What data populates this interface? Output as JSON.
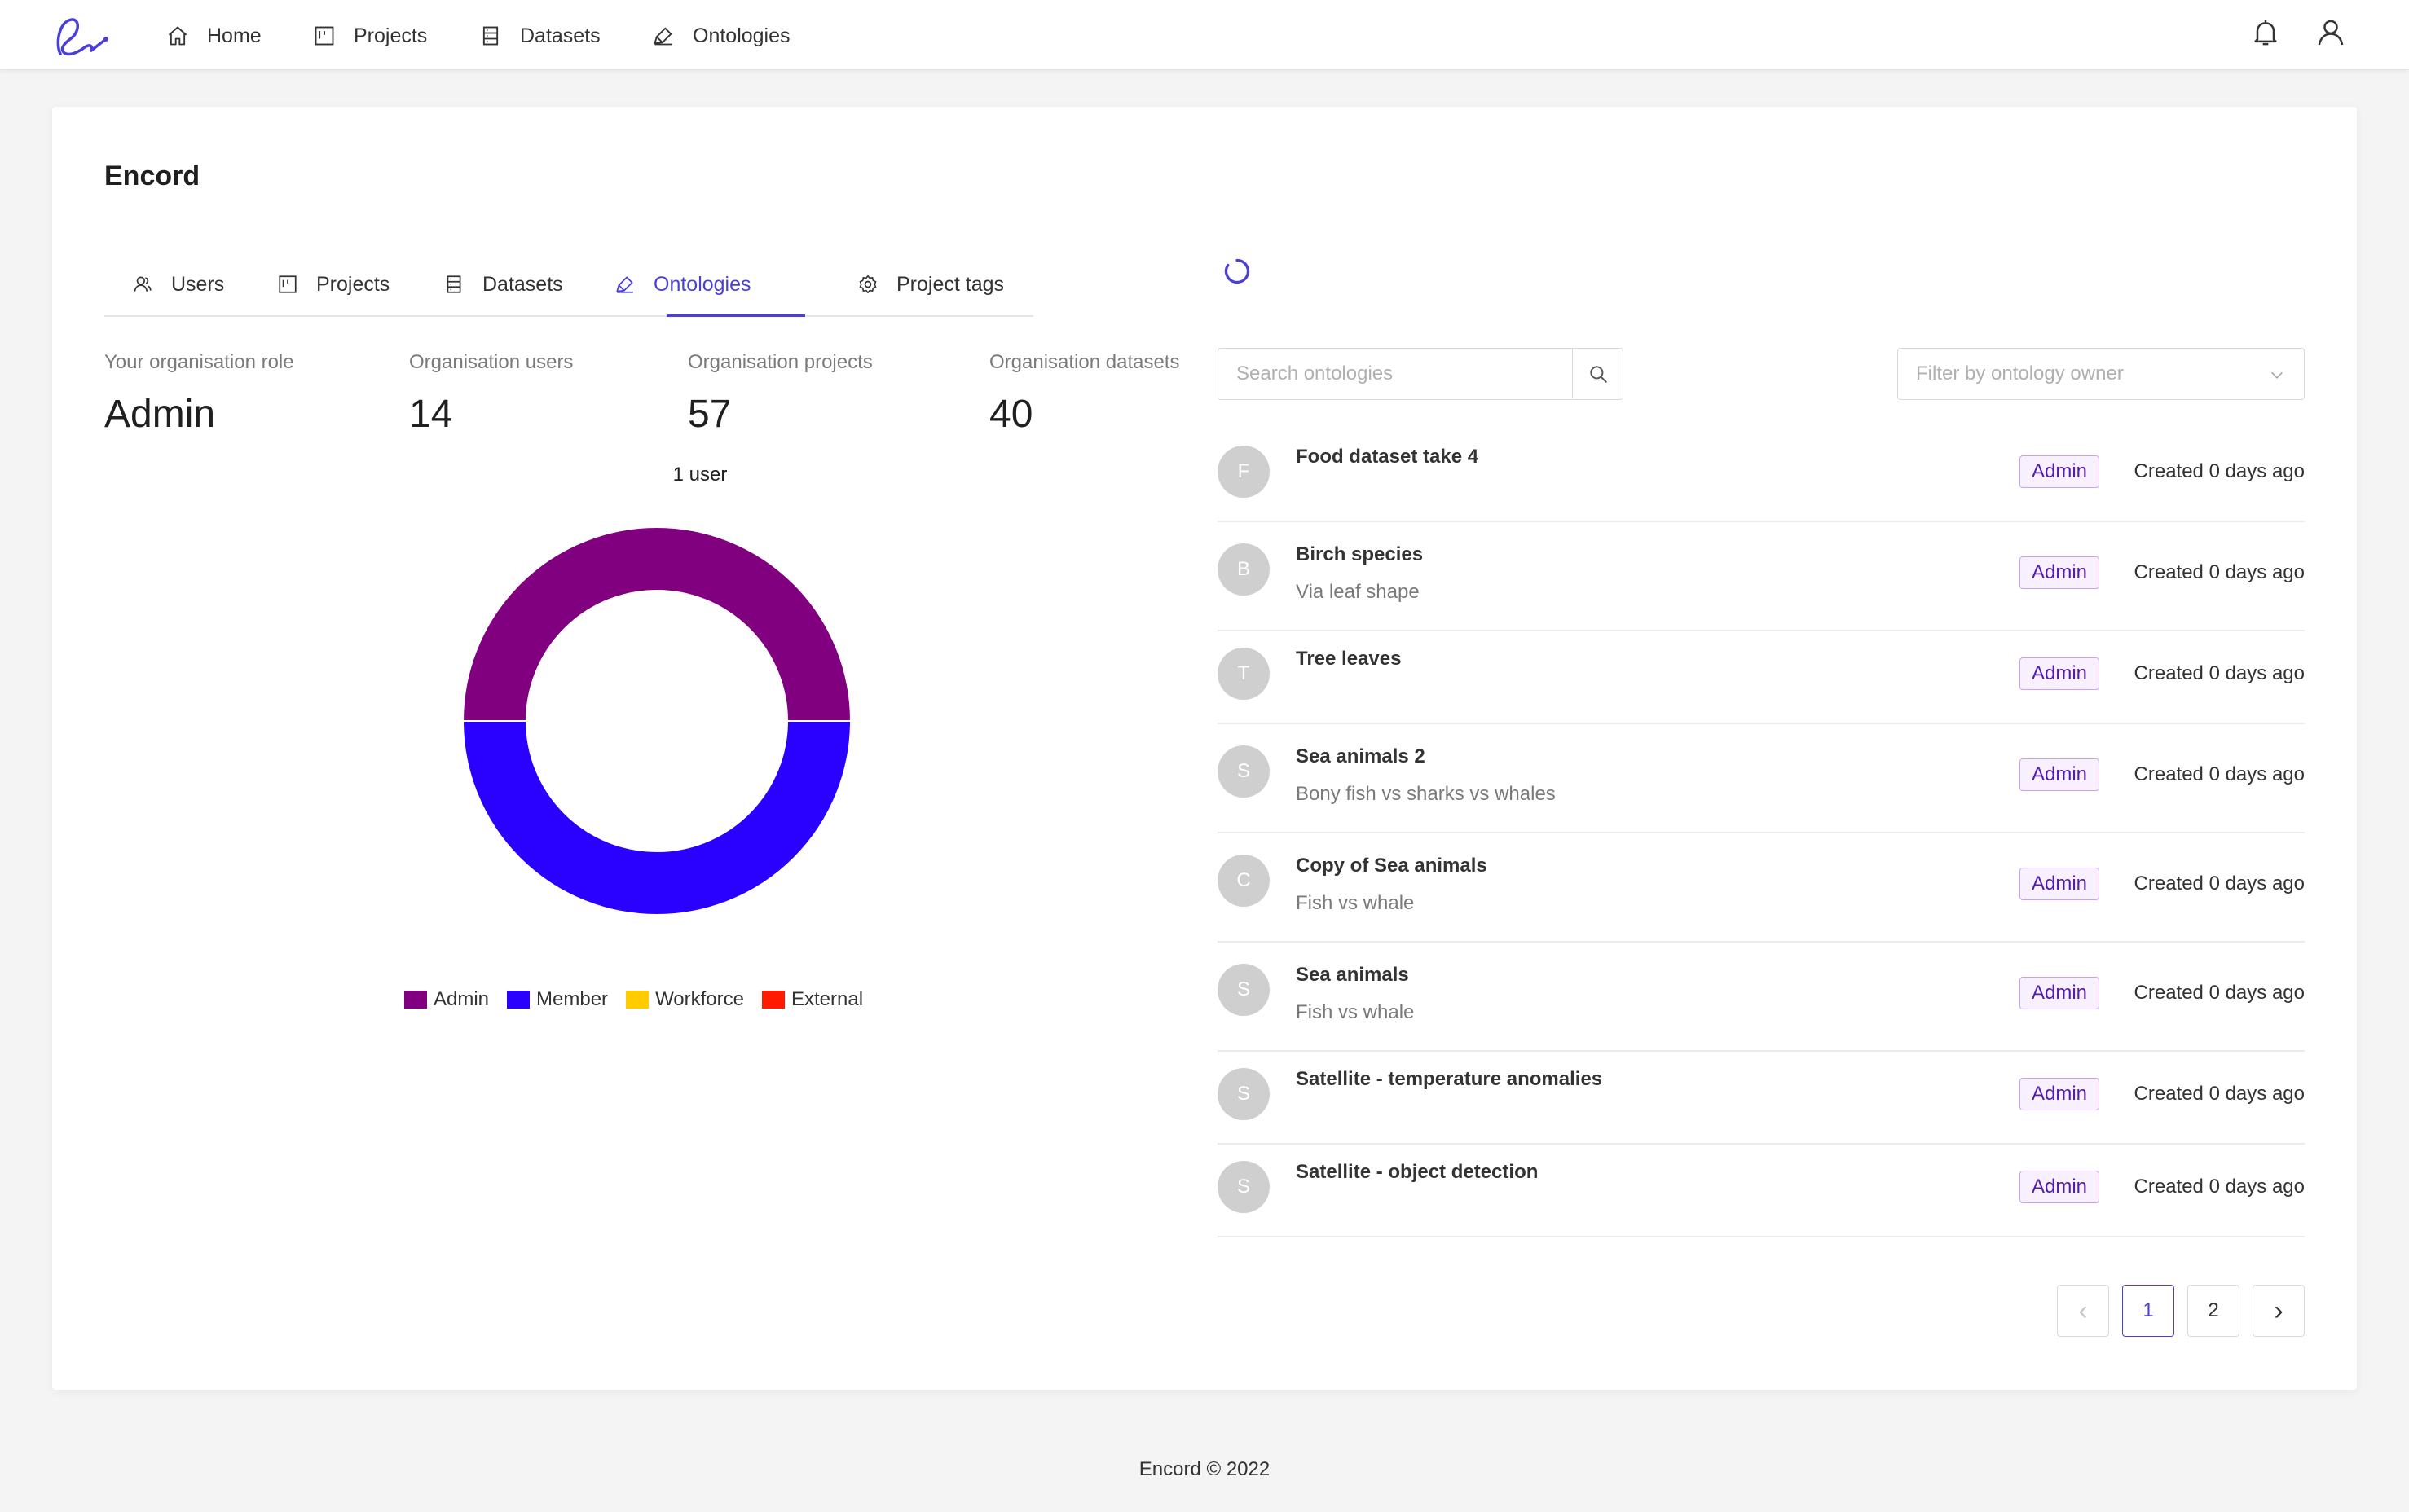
{
  "nav": {
    "items": [
      {
        "label": "Home",
        "icon": "home-icon"
      },
      {
        "label": "Projects",
        "icon": "kanban-icon"
      },
      {
        "label": "Datasets",
        "icon": "database-icon"
      },
      {
        "label": "Ontologies",
        "icon": "highlight-icon"
      }
    ],
    "right_icons": [
      "bell-icon",
      "user-icon"
    ]
  },
  "page": {
    "title": "Encord",
    "tabs": [
      {
        "label": "Users",
        "icon": "team-icon"
      },
      {
        "label": "Projects",
        "icon": "kanban-icon"
      },
      {
        "label": "Datasets",
        "icon": "database-icon"
      },
      {
        "label": "Ontologies",
        "icon": "highlight-icon",
        "active": true
      },
      {
        "label": "Project tags",
        "icon": "setting-icon"
      }
    ]
  },
  "stats": [
    {
      "label": "Your organisation role",
      "value": "Admin"
    },
    {
      "label": "Organisation users",
      "value": "14"
    },
    {
      "label": "Organisation projects",
      "value": "57"
    },
    {
      "label": "Organisation datasets",
      "value": "40"
    }
  ],
  "chart_data": {
    "type": "pie",
    "title": "1 user",
    "donut": true,
    "categories": [
      "Admin",
      "Member",
      "Workforce",
      "External"
    ],
    "values": [
      0.5,
      0.5,
      0,
      0
    ],
    "colors": [
      "#800080",
      "#2a00ff",
      "#ffcc00",
      "#ff1a00"
    ],
    "legend": "bottom"
  },
  "search": {
    "placeholder": "Search ontologies"
  },
  "filter": {
    "placeholder": "Filter by ontology owner"
  },
  "ontologies": [
    {
      "initial": "F",
      "title": "Food dataset take 4",
      "subtitle": "",
      "role": "Admin",
      "created": "Created 0 days ago"
    },
    {
      "initial": "B",
      "title": "Birch species",
      "subtitle": "Via leaf shape",
      "role": "Admin",
      "created": "Created 0 days ago"
    },
    {
      "initial": "T",
      "title": "Tree leaves",
      "subtitle": "",
      "role": "Admin",
      "created": "Created 0 days ago"
    },
    {
      "initial": "S",
      "title": "Sea animals 2",
      "subtitle": "Bony fish vs sharks vs whales",
      "role": "Admin",
      "created": "Created 0 days ago"
    },
    {
      "initial": "C",
      "title": "Copy of Sea animals",
      "subtitle": "Fish vs whale",
      "role": "Admin",
      "created": "Created 0 days ago"
    },
    {
      "initial": "S",
      "title": "Sea animals",
      "subtitle": "Fish vs whale",
      "role": "Admin",
      "created": "Created 0 days ago"
    },
    {
      "initial": "S",
      "title": "Satellite - temperature anomalies",
      "subtitle": "",
      "role": "Admin",
      "created": "Created 0 days ago"
    },
    {
      "initial": "S",
      "title": "Satellite - object detection",
      "subtitle": "",
      "role": "Admin",
      "created": "Created 0 days ago"
    }
  ],
  "pagination": {
    "prev": "‹",
    "pages": [
      "1",
      "2"
    ],
    "next": "›",
    "current": "1"
  },
  "footer": {
    "text": "Encord © 2022"
  }
}
